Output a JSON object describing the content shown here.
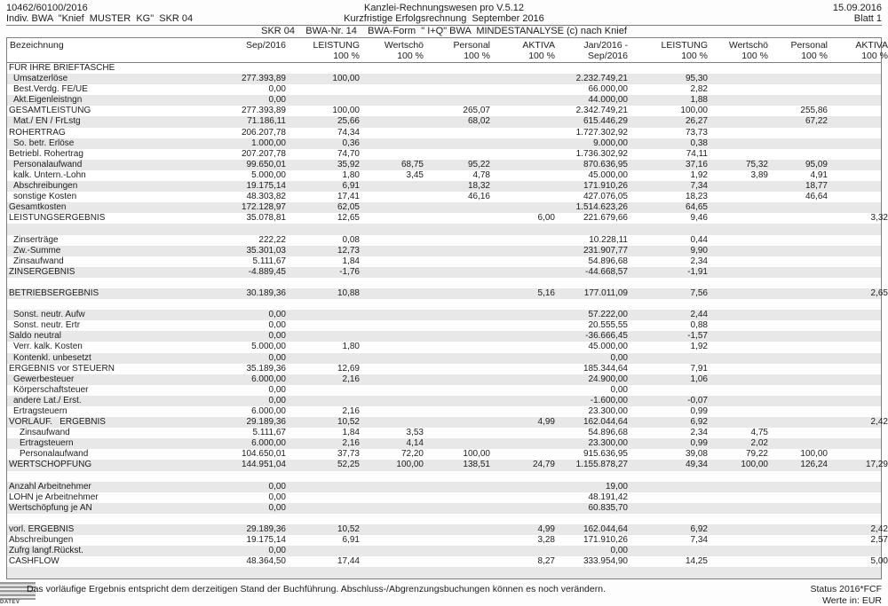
{
  "header": {
    "left_line1": "10462/60100/2016",
    "left_line2": "Indiv. BWA  \"Knief  MUSTER  KG\"  SKR 04",
    "center_line1": "Kanzlei-Rechnungswesen pro V.5.12",
    "center_line2": "Kurzfristige Erfolgsrechnung  September 2016",
    "center_line3": "SKR 04    BWA-Nr. 14    BWA-Form  \" I+Q\" BWA  MINDESTANALYSE (c) nach Knief",
    "right_line1": "15.09.2016",
    "right_line2": "Blatt 1"
  },
  "table": {
    "columns": [
      {
        "l1": "Bezeichnung",
        "l2": ""
      },
      {
        "l1": "Sep/2016",
        "l2": ""
      },
      {
        "l1": "LEISTUNG",
        "l2": "100 %"
      },
      {
        "l1": "Wertschö",
        "l2": "100 %"
      },
      {
        "l1": "Personal",
        "l2": "100 %"
      },
      {
        "l1": "AKTIVA",
        "l2": "100 %"
      },
      {
        "l1": "Jan/2016 -",
        "l2": "Sep/2016"
      },
      {
        "l1": "LEISTUNG",
        "l2": "100 %"
      },
      {
        "l1": "Wertschö",
        "l2": "100 %"
      },
      {
        "l1": "Personal",
        "l2": "100 %"
      },
      {
        "l1": "AKTIVA",
        "l2": "100 %"
      }
    ],
    "rows": [
      {
        "label": "FÜR IHRE BRIEFTASCHE",
        "indent": 0,
        "values": [
          "",
          "",
          "",
          "",
          "",
          "",
          "",
          "",
          "",
          ""
        ]
      },
      {
        "label": "Umsatzerlöse",
        "indent": 1,
        "values": [
          "277.393,89",
          "100,00",
          "",
          "",
          "",
          "2.232.749,21",
          "95,30",
          "",
          "",
          ""
        ]
      },
      {
        "label": "Best.Verdg. FE/UE",
        "indent": 1,
        "values": [
          "0,00",
          "",
          "",
          "",
          "",
          "66.000,00",
          "2,82",
          "",
          "",
          ""
        ]
      },
      {
        "label": "Akt.Eigenleistngn",
        "indent": 1,
        "values": [
          "0,00",
          "",
          "",
          "",
          "",
          "44.000,00",
          "1,88",
          "",
          "",
          ""
        ]
      },
      {
        "label": "GESAMTLEISTUNG",
        "indent": 0,
        "values": [
          "277.393,89",
          "100,00",
          "",
          "265,07",
          "",
          "2.342.749,21",
          "100,00",
          "",
          "255,86",
          ""
        ]
      },
      {
        "label": "Mat./ EN / FrLstg",
        "indent": 1,
        "values": [
          "71.186,11",
          "25,66",
          "",
          "68,02",
          "",
          "615.446,29",
          "26,27",
          "",
          "67,22",
          ""
        ]
      },
      {
        "label": "ROHERTRAG",
        "indent": 0,
        "values": [
          "206.207,78",
          "74,34",
          "",
          "",
          "",
          "1.727.302,92",
          "73,73",
          "",
          "",
          ""
        ]
      },
      {
        "label": "So. betr. Erlöse",
        "indent": 1,
        "values": [
          "1.000,00",
          "0,36",
          "",
          "",
          "",
          "9.000,00",
          "0,38",
          "",
          "",
          ""
        ]
      },
      {
        "label": "Betriebl. Rohertrag",
        "indent": 0,
        "values": [
          "207.207,78",
          "74,70",
          "",
          "",
          "",
          "1.736.302,92",
          "74,11",
          "",
          "",
          ""
        ]
      },
      {
        "label": "Personalaufwand",
        "indent": 1,
        "values": [
          "99.650,01",
          "35,92",
          "68,75",
          "95,22",
          "",
          "870.636,95",
          "37,16",
          "75,32",
          "95,09",
          ""
        ]
      },
      {
        "label": "kalk. Untern.-Lohn",
        "indent": 1,
        "values": [
          "5.000,00",
          "1,80",
          "3,45",
          "4,78",
          "",
          "45.000,00",
          "1,92",
          "3,89",
          "4,91",
          ""
        ]
      },
      {
        "label": "Abschreibungen",
        "indent": 1,
        "values": [
          "19.175,14",
          "6,91",
          "",
          "18,32",
          "",
          "171.910,26",
          "7,34",
          "",
          "18,77",
          ""
        ]
      },
      {
        "label": "sonstige Kosten",
        "indent": 1,
        "values": [
          "48.303,82",
          "17,41",
          "",
          "46,16",
          "",
          "427.076,05",
          "18,23",
          "",
          "46,64",
          ""
        ]
      },
      {
        "label": "Gesamtkosten",
        "indent": 0,
        "values": [
          "172.128,97",
          "62,05",
          "",
          "",
          "",
          "1.514.623,26",
          "64,65",
          "",
          "",
          ""
        ]
      },
      {
        "label": "LEISTUNGSERGEBNIS",
        "indent": 0,
        "values": [
          "35.078,81",
          "12,65",
          "",
          "",
          "6,00",
          "221.679,66",
          "9,46",
          "",
          "",
          "3,32"
        ]
      },
      {
        "blank": true
      },
      {
        "label": "Zinserträge",
        "indent": 1,
        "values": [
          "222,22",
          "0,08",
          "",
          "",
          "",
          "10.228,11",
          "0,44",
          "",
          "",
          ""
        ]
      },
      {
        "label": "Zw.-Summe",
        "indent": 1,
        "values": [
          "35.301,03",
          "12,73",
          "",
          "",
          "",
          "231.907,77",
          "9,90",
          "",
          "",
          ""
        ]
      },
      {
        "label": "Zinsaufwand",
        "indent": 1,
        "values": [
          "5.111,67",
          "1,84",
          "",
          "",
          "",
          "54.896,68",
          "2,34",
          "",
          "",
          ""
        ]
      },
      {
        "label": "ZINSERGEBNIS",
        "indent": 0,
        "values": [
          "-4.889,45",
          "-1,76",
          "",
          "",
          "",
          "-44.668,57",
          "-1,91",
          "",
          "",
          ""
        ]
      },
      {
        "blank": true
      },
      {
        "label": "BETRIEBSERGEBNIS",
        "indent": 0,
        "values": [
          "30.189,36",
          "10,88",
          "",
          "",
          "5,16",
          "177.011,09",
          "7,56",
          "",
          "",
          "2,65"
        ]
      },
      {
        "blank": true
      },
      {
        "label": "Sonst. neutr. Aufw",
        "indent": 1,
        "values": [
          "0,00",
          "",
          "",
          "",
          "",
          "57.222,00",
          "2,44",
          "",
          "",
          ""
        ]
      },
      {
        "label": "Sonst. neutr. Ertr",
        "indent": 1,
        "values": [
          "0,00",
          "",
          "",
          "",
          "",
          "20.555,55",
          "0,88",
          "",
          "",
          ""
        ]
      },
      {
        "label": "Saldo neutral",
        "indent": 0,
        "values": [
          "0,00",
          "",
          "",
          "",
          "",
          "-36.666,45",
          "-1,57",
          "",
          "",
          ""
        ]
      },
      {
        "label": "Verr. kalk. Kosten",
        "indent": 1,
        "values": [
          "5.000,00",
          "1,80",
          "",
          "",
          "",
          "45.000,00",
          "1,92",
          "",
          "",
          ""
        ]
      },
      {
        "label": "Kontenkl. unbesetzt",
        "indent": 1,
        "values": [
          "0,00",
          "",
          "",
          "",
          "",
          "0,00",
          "",
          "",
          "",
          ""
        ]
      },
      {
        "label": "ERGEBNIS vor STEUERN",
        "indent": 0,
        "values": [
          "35.189,36",
          "12,69",
          "",
          "",
          "",
          "185.344,64",
          "7,91",
          "",
          "",
          ""
        ]
      },
      {
        "label": "Gewerbesteuer",
        "indent": 1,
        "values": [
          "6.000,00",
          "2,16",
          "",
          "",
          "",
          "24.900,00",
          "1,06",
          "",
          "",
          ""
        ]
      },
      {
        "label": "Körperschaftsteuer",
        "indent": 1,
        "values": [
          "0,00",
          "",
          "",
          "",
          "",
          "0,00",
          "",
          "",
          "",
          ""
        ]
      },
      {
        "label": "andere Lat./ Erst.",
        "indent": 1,
        "values": [
          "0,00",
          "",
          "",
          "",
          "",
          "-1.600,00",
          "-0,07",
          "",
          "",
          ""
        ]
      },
      {
        "label": "Ertragsteuern",
        "indent": 1,
        "values": [
          "6.000,00",
          "2,16",
          "",
          "",
          "",
          "23.300,00",
          "0,99",
          "",
          "",
          ""
        ]
      },
      {
        "label": "VORLÄUF.   ERGEBNIS",
        "indent": 0,
        "values": [
          "29.189,36",
          "10,52",
          "",
          "",
          "4,99",
          "162.044,64",
          "6,92",
          "",
          "",
          "2,42"
        ]
      },
      {
        "label": "Zinsaufwand",
        "indent": 2,
        "values": [
          "5.111,67",
          "1,84",
          "3,53",
          "",
          "",
          "54.896,68",
          "2,34",
          "4,75",
          "",
          ""
        ]
      },
      {
        "label": "Ertragsteuern",
        "indent": 2,
        "values": [
          "6.000,00",
          "2,16",
          "4,14",
          "",
          "",
          "23.300,00",
          "0,99",
          "2,02",
          "",
          ""
        ]
      },
      {
        "label": "Personalaufwand",
        "indent": 2,
        "values": [
          "104.650,01",
          "37,73",
          "72,20",
          "100,00",
          "",
          "915.636,95",
          "39,08",
          "79,22",
          "100,00",
          ""
        ]
      },
      {
        "label": "WERTSCHÖPFUNG",
        "indent": 0,
        "values": [
          "144.951,04",
          "52,25",
          "100,00",
          "138,51",
          "24,79",
          "1.155.878,27",
          "49,34",
          "100,00",
          "126,24",
          "17,29"
        ]
      },
      {
        "blank": true
      },
      {
        "label": "Anzahl Arbeitnehmer",
        "indent": 0,
        "values": [
          "0,00",
          "",
          "",
          "",
          "",
          "19,00",
          "",
          "",
          "",
          ""
        ]
      },
      {
        "label": "LOHN je Arbeitnehmer",
        "indent": 0,
        "values": [
          "0,00",
          "",
          "",
          "",
          "",
          "48.191,42",
          "",
          "",
          "",
          ""
        ]
      },
      {
        "label": "Wertschöpfung je AN",
        "indent": 0,
        "values": [
          "0,00",
          "",
          "",
          "",
          "",
          "60.835,70",
          "",
          "",
          "",
          ""
        ]
      },
      {
        "blank": true
      },
      {
        "label": "vorl. ERGEBNIS",
        "indent": 0,
        "values": [
          "29.189,36",
          "10,52",
          "",
          "",
          "4,99",
          "162.044,64",
          "6,92",
          "",
          "",
          "2,42"
        ]
      },
      {
        "label": "Abschreibungen",
        "indent": 0,
        "values": [
          "19.175,14",
          "6,91",
          "",
          "",
          "3,28",
          "171.910,26",
          "7,34",
          "",
          "",
          "2,57"
        ]
      },
      {
        "label": "Zufrg langf.Rückst.",
        "indent": 0,
        "values": [
          "0,00",
          "",
          "",
          "",
          "",
          "0,00",
          "",
          "",
          "",
          ""
        ]
      },
      {
        "label": "CASHFLOW",
        "indent": 0,
        "values": [
          "48.364,50",
          "17,44",
          "",
          "",
          "8,27",
          "333.954,90",
          "14,25",
          "",
          "",
          "5,00"
        ]
      },
      {
        "blank": true
      }
    ]
  },
  "footer": {
    "logo_text": "DATEV",
    "disclaimer": "Das vorläufige Ergebnis entspricht dem derzeitigen Stand der Buchführung. Abschluss-/Abgrenzungsbuchungen können es noch verändern.",
    "status": "Status 2016*FCF",
    "currency": "Werte in: EUR"
  },
  "colors": {
    "zebra_row": "#e8e8e8",
    "border": "#7f7f7f",
    "text": "#1c1c1c"
  }
}
